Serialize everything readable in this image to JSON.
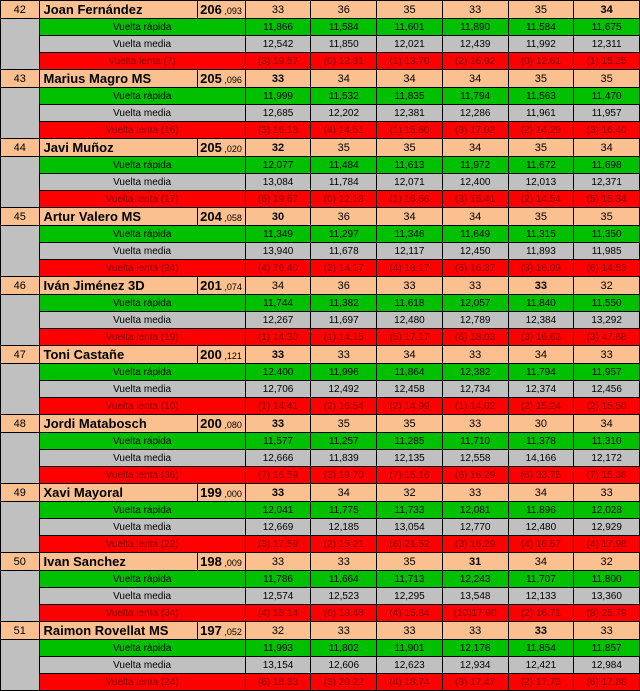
{
  "labels": {
    "fast": "Vuelta rápida",
    "avg": "Vuelta media",
    "slow": "Vuelta  lenta"
  },
  "rows": [
    {
      "pos": 42,
      "name": "Joan Fernández",
      "total": "206",
      "sub": ",093",
      "laps": [
        "33",
        "36",
        "35",
        "33",
        "35",
        "34"
      ],
      "bold": [
        5
      ],
      "fast": [
        "11,866",
        "11,584",
        "11,601",
        "11,890",
        "11,584",
        "11,675"
      ],
      "avg": [
        "12,542",
        "11,850",
        "12,021",
        "12,439",
        "11,992",
        "12,311"
      ],
      "slow_lbl_suffix": "(7)",
      "slow": [
        "(3) 19.57",
        "(0) 12.31",
        "(1) 13.70",
        "(2) 16.92",
        "(0) 12.61",
        "(1) 15.25"
      ]
    },
    {
      "pos": 43,
      "name": "Marius Magro MS",
      "total": "205",
      "sub": ",096",
      "laps": [
        "33",
        "34",
        "34",
        "34",
        "35",
        "35"
      ],
      "bold": [
        0
      ],
      "fast": [
        "11,999",
        "11,532",
        "11,835",
        "11,794",
        "11,563",
        "11,470"
      ],
      "avg": [
        "12,685",
        "12,202",
        "12,381",
        "12,286",
        "11,961",
        "11,957"
      ],
      "slow_lbl_suffix": "(16)",
      "slow": [
        "(3) 16.13",
        "(4) 14.51",
        "(1) 15.60",
        "(3) 17.02",
        "(2) 14.29",
        "(3) 16.40"
      ]
    },
    {
      "pos": 44,
      "name": "Javi Muñoz",
      "total": "205",
      "sub": ",020",
      "laps": [
        "32",
        "35",
        "35",
        "34",
        "35",
        "34"
      ],
      "bold": [
        0
      ],
      "fast": [
        "12,077",
        "11,484",
        "11,613",
        "11,972",
        "11,672",
        "11,698"
      ],
      "avg": [
        "13,084",
        "11,784",
        "12,071",
        "12,400",
        "12,013",
        "12,371"
      ],
      "slow_lbl_suffix": "(17)",
      "slow": [
        "(6) 19.67",
        "(0) 12.18",
        "(1) 16.56",
        "(3) 15.41",
        "(2) 14.54",
        "(5) 15.34"
      ]
    },
    {
      "pos": 45,
      "name": "Artur Valero MS",
      "total": "204",
      "sub": ",058",
      "laps": [
        "30",
        "36",
        "34",
        "34",
        "35",
        "35"
      ],
      "bold": [
        0
      ],
      "fast": [
        "11,349",
        "11,297",
        "11,346",
        "11,649",
        "11,315",
        "11,350"
      ],
      "avg": [
        "13,940",
        "11,678",
        "12,117",
        "12,450",
        "11,893",
        "11,985"
      ],
      "slow_lbl_suffix": "(24)",
      "slow": [
        "(4) 76.40",
        "(2) 14.17",
        "(4) 18.17",
        "(5) 16.37",
        "(3) 16.09",
        "(6) 14.53"
      ]
    },
    {
      "pos": 46,
      "name": "Iván Jiménez 3D",
      "total": "201",
      "sub": ",074",
      "laps": [
        "34",
        "36",
        "33",
        "33",
        "33",
        "32"
      ],
      "bold": [
        4
      ],
      "fast": [
        "11,744",
        "11,382",
        "11,618",
        "12,057",
        "11,840",
        "11,550"
      ],
      "avg": [
        "12,267",
        "11,697",
        "12,480",
        "12,789",
        "12,384",
        "13,292"
      ],
      "slow_lbl_suffix": "(19)",
      "slow": [
        "(1) 14.30",
        "(1) 14.15",
        "(5) 17.17",
        "(6) 18.03",
        "(3) 16.63",
        "(3) 47.68"
      ]
    },
    {
      "pos": 47,
      "name": "Toni Castañe",
      "total": "200",
      "sub": ",121",
      "laps": [
        "33",
        "33",
        "34",
        "33",
        "34",
        "33"
      ],
      "bold": [
        0
      ],
      "fast": [
        "12,400",
        "11,996",
        "11,864",
        "12,382",
        "11,794",
        "11,957"
      ],
      "avg": [
        "12,706",
        "12,492",
        "12,458",
        "12,734",
        "12,374",
        "12,456"
      ],
      "slow_lbl_suffix": "(10)",
      "slow": [
        "(1) 14.41",
        "(2) 16.54",
        "(2) 14.99",
        "(1) 14.02",
        "(2) 15.24",
        "(2) 15.50"
      ]
    },
    {
      "pos": 48,
      "name": "Jordi Matabosch",
      "total": "200",
      "sub": ",080",
      "laps": [
        "33",
        "35",
        "35",
        "33",
        "30",
        "34"
      ],
      "bold": [
        0
      ],
      "fast": [
        "11,577",
        "11,257",
        "11,285",
        "11,710",
        "11,378",
        "11,310"
      ],
      "avg": [
        "12,666",
        "11,839",
        "12,135",
        "12,558",
        "14,166",
        "12,172"
      ],
      "slow_lbl_suffix": "(36)",
      "slow": [
        "(7) 16.59",
        "(3) 19.70",
        "(7) 15.16",
        "(6) 16.29",
        "(6) 33.75",
        "(7) 15.36"
      ]
    },
    {
      "pos": 49,
      "name": "Xavi Mayoral",
      "total": "199",
      "sub": ",000",
      "laps": [
        "33",
        "34",
        "32",
        "33",
        "34",
        "33"
      ],
      "bold": [
        0
      ],
      "fast": [
        "12,041",
        "11,775",
        "11,733",
        "12,081",
        "11,896",
        "12,028"
      ],
      "avg": [
        "12,669",
        "12,185",
        "13,054",
        "12,770",
        "12,480",
        "12,929"
      ],
      "slow_lbl_suffix": "(22)",
      "slow": [
        "(3) 17.59",
        "(2) 15.21",
        "(6) 21.52",
        "(3) 16.29",
        "(4) 16.57",
        "(4) 17.98"
      ]
    },
    {
      "pos": 50,
      "name": "Ivan Sanchez",
      "total": "198",
      "sub": ",009",
      "laps": [
        "33",
        "33",
        "35",
        "31",
        "34",
        "32"
      ],
      "bold": [
        3
      ],
      "fast": [
        "11,786",
        "11,664",
        "11,713",
        "12,243",
        "11,707",
        "11,800"
      ],
      "avg": [
        "12,574",
        "12,523",
        "12,295",
        "13,548",
        "12,133",
        "13,360"
      ],
      "slow_lbl_suffix": "(34)",
      "slow": [
        "(4) 18.14",
        "(6) 18.48",
        "(4) 15.84",
        "(10)17.90",
        "(2) 16.71",
        "(8) 25.79"
      ]
    },
    {
      "pos": 51,
      "name": "Raimon Rovellat MS",
      "total": "197",
      "sub": ",052",
      "laps": [
        "32",
        "33",
        "33",
        "33",
        "33",
        "33"
      ],
      "bold": [
        4
      ],
      "fast": [
        "11,993",
        "11,802",
        "11,901",
        "12,176",
        "11,854",
        "11,857"
      ],
      "avg": [
        "13,154",
        "12,606",
        "12,623",
        "12,934",
        "12,421",
        "12,984"
      ],
      "slow_lbl_suffix": "(24)",
      "slow": [
        "(6) 18.33",
        "(3) 20.22",
        "(4) 18.74",
        "(3) 17.47",
        "(2) 17.73",
        "(6) 17.88"
      ]
    }
  ]
}
